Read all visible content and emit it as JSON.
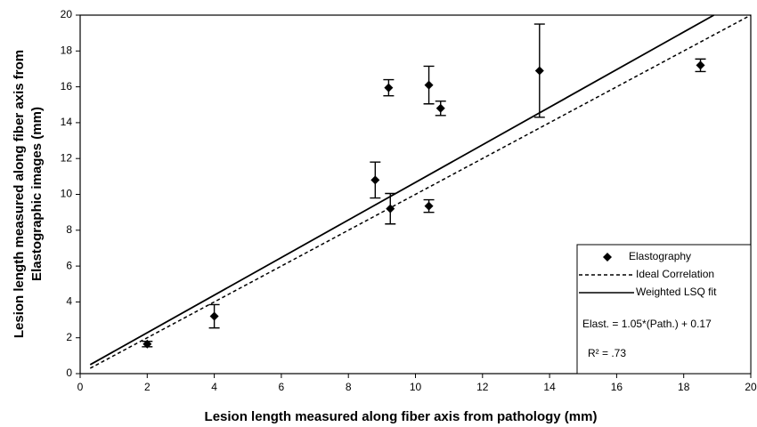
{
  "chart_data": {
    "type": "scatter",
    "xlabel": "Lesion length measured along fiber axis from pathology (mm)",
    "ylabel": [
      "Lesion length measured along fiber axis from",
      "Elastographic images (mm)"
    ],
    "xlim": [
      0,
      20
    ],
    "ylim": [
      0,
      20
    ],
    "xticks": [
      0,
      2,
      4,
      6,
      8,
      10,
      12,
      14,
      16,
      18,
      20
    ],
    "yticks": [
      0,
      2,
      4,
      6,
      8,
      10,
      12,
      14,
      16,
      18,
      20
    ],
    "grid": false,
    "legend": "lower right",
    "series": [
      {
        "name": "Elastography",
        "type": "scatter",
        "color": "#000000",
        "x": [
          2.0,
          4.0,
          8.8,
          9.2,
          9.25,
          10.4,
          10.4,
          10.75,
          13.7,
          18.5
        ],
        "values": [
          1.65,
          3.2,
          10.8,
          15.95,
          9.2,
          16.1,
          9.35,
          14.8,
          16.9,
          17.2
        ],
        "errors": [
          0.15,
          0.65,
          1.0,
          0.45,
          0.85,
          1.05,
          0.35,
          0.4,
          2.6,
          0.35
        ]
      },
      {
        "name": "Ideal Correlation",
        "type": "line",
        "dashed": true,
        "color": "#000000",
        "x": [
          0.3,
          20
        ],
        "values": [
          0.3,
          20
        ]
      },
      {
        "name": "Weighted LSQ fit",
        "type": "line",
        "dashed": false,
        "color": "#000000",
        "x": [
          0.3,
          18.9
        ],
        "values": [
          0.5,
          20
        ]
      }
    ],
    "annotations": [
      "Elast. = 1.05*(Path.) + 0.17",
      "R² = .73"
    ]
  }
}
